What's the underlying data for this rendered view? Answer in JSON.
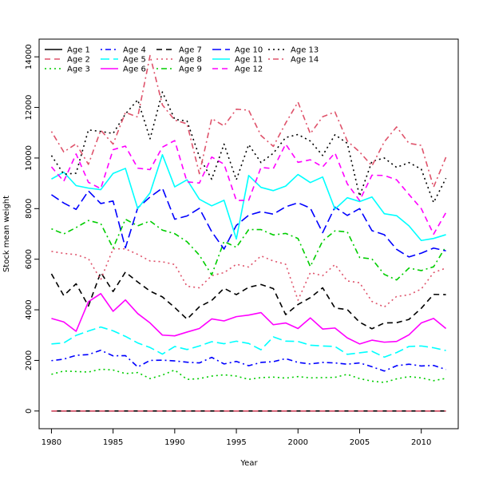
{
  "chart_data": {
    "type": "line",
    "title": "",
    "xlabel": "Year",
    "ylabel": "Stock mean weight",
    "xlim": [
      1979,
      2013
    ],
    "ylim": [
      -700,
      14700
    ],
    "x_ticks": [
      1980,
      1985,
      1990,
      1995,
      2000,
      2005,
      2010
    ],
    "y_ticks": [
      0,
      2000,
      4000,
      6000,
      8000,
      10000,
      12000,
      14000
    ],
    "grid": false,
    "legend_position": "top-left",
    "x": [
      1980,
      1981,
      1982,
      1983,
      1984,
      1985,
      1986,
      1987,
      1988,
      1989,
      1990,
      1991,
      1992,
      1993,
      1994,
      1995,
      1996,
      1997,
      1998,
      1999,
      2000,
      2001,
      2002,
      2003,
      2004,
      2005,
      2006,
      2007,
      2008,
      2009,
      2010,
      2011,
      2012
    ],
    "series": [
      {
        "name": "Age 1",
        "color": "#000000",
        "dash": "solid",
        "values": [
          0,
          0,
          0,
          0,
          0,
          0,
          0,
          0,
          0,
          0,
          0,
          0,
          0,
          0,
          0,
          0,
          0,
          0,
          0,
          0,
          0,
          0,
          0,
          0,
          0,
          0,
          0,
          0,
          0,
          0,
          0,
          0,
          0
        ]
      },
      {
        "name": "Age 2",
        "color": "#DF536B",
        "dash": "dash",
        "values": [
          0,
          0,
          0,
          0,
          0,
          0,
          0,
          0,
          0,
          0,
          0,
          0,
          0,
          0,
          0,
          0,
          0,
          0,
          0,
          0,
          0,
          0,
          0,
          0,
          0,
          0,
          0,
          0,
          0,
          0,
          0,
          0,
          0
        ]
      },
      {
        "name": "Age 3",
        "color": "#00CD00",
        "dash": "dot",
        "values": [
          1450,
          1580,
          1560,
          1540,
          1650,
          1620,
          1480,
          1520,
          1280,
          1420,
          1620,
          1250,
          1280,
          1380,
          1430,
          1380,
          1250,
          1320,
          1340,
          1300,
          1360,
          1310,
          1320,
          1330,
          1450,
          1280,
          1180,
          1130,
          1270,
          1360,
          1310,
          1200,
          1290
        ]
      },
      {
        "name": "Age 4",
        "color": "#0000FF",
        "dash": "dotdash",
        "values": [
          1990,
          2050,
          2200,
          2230,
          2400,
          2180,
          2190,
          1740,
          2000,
          2010,
          1980,
          1930,
          1900,
          2120,
          1860,
          1960,
          1790,
          1920,
          1950,
          2070,
          1920,
          1860,
          1920,
          1900,
          1850,
          1900,
          1750,
          1580,
          1790,
          1850,
          1780,
          1800,
          1640
        ]
      },
      {
        "name": "Age 5",
        "color": "#00FFFF",
        "dash": "longdash",
        "values": [
          2650,
          2690,
          2990,
          3160,
          3320,
          3170,
          2950,
          2690,
          2510,
          2250,
          2550,
          2430,
          2570,
          2740,
          2660,
          2760,
          2670,
          2420,
          2930,
          2760,
          2750,
          2600,
          2570,
          2550,
          2240,
          2300,
          2360,
          2130,
          2310,
          2550,
          2570,
          2500,
          2390
        ]
      },
      {
        "name": "Age 6",
        "color": "#FF00FF",
        "dash": "solid",
        "values": [
          3660,
          3520,
          3150,
          4320,
          4640,
          3940,
          4390,
          3850,
          3480,
          3000,
          2970,
          3120,
          3260,
          3640,
          3560,
          3730,
          3790,
          3890,
          3410,
          3480,
          3260,
          3680,
          3240,
          3280,
          2890,
          2650,
          2800,
          2720,
          2750,
          3010,
          3480,
          3660,
          3260
        ]
      },
      {
        "name": "Age 7",
        "color": "#000000",
        "dash": "dash",
        "values": [
          5420,
          4560,
          5030,
          4150,
          5480,
          4720,
          5490,
          5100,
          4740,
          4510,
          4090,
          3630,
          4120,
          4370,
          4850,
          4600,
          4890,
          5000,
          4840,
          3810,
          4210,
          4480,
          4870,
          4070,
          4010,
          3510,
          3250,
          3480,
          3490,
          3620,
          4060,
          4610,
          4600
        ]
      },
      {
        "name": "Age 8",
        "color": "#DF536B",
        "dash": "dot",
        "values": [
          6310,
          6230,
          6180,
          6020,
          5190,
          6410,
          6410,
          6190,
          5930,
          5900,
          5790,
          4930,
          4870,
          5350,
          5470,
          5800,
          5690,
          6130,
          5930,
          5800,
          4380,
          5470,
          5350,
          5790,
          5140,
          5070,
          4330,
          4110,
          4530,
          4590,
          4820,
          5470,
          5650
        ]
      },
      {
        "name": "Age 9",
        "color": "#00CD00",
        "dash": "dotdash",
        "values": [
          7200,
          7000,
          7250,
          7530,
          7410,
          6440,
          7580,
          7320,
          7510,
          7150,
          7010,
          6690,
          6160,
          5380,
          6700,
          6470,
          7170,
          7170,
          6960,
          7020,
          6820,
          5710,
          6720,
          7120,
          7080,
          6070,
          6010,
          5400,
          5180,
          5650,
          5550,
          5700,
          6500
        ]
      },
      {
        "name": "Age 10",
        "color": "#0000FF",
        "dash": "longdash",
        "values": [
          8550,
          8220,
          7970,
          8700,
          8200,
          8300,
          6450,
          8030,
          8460,
          8810,
          7580,
          7710,
          8010,
          7090,
          6400,
          7340,
          7740,
          7880,
          7780,
          8070,
          8230,
          8020,
          7050,
          8060,
          7730,
          8000,
          7130,
          6970,
          6390,
          6090,
          6240,
          6440,
          6330
        ]
      },
      {
        "name": "Age 11",
        "color": "#00FFFF",
        "dash": "solid",
        "values": [
          9170,
          9440,
          8910,
          8810,
          8750,
          9390,
          9590,
          8000,
          8620,
          10130,
          8860,
          9140,
          8370,
          8110,
          8330,
          6800,
          9310,
          8840,
          8710,
          8890,
          9350,
          9030,
          9250,
          7980,
          8430,
          8280,
          8460,
          7800,
          7720,
          7320,
          6740,
          6820,
          6970
        ]
      },
      {
        "name": "Age 12",
        "color": "#FF00FF",
        "dash": "dash",
        "values": [
          9650,
          9080,
          10160,
          9040,
          8790,
          10330,
          10470,
          9600,
          9540,
          10430,
          10690,
          9060,
          9010,
          10040,
          9760,
          8320,
          8330,
          9630,
          9580,
          10550,
          9830,
          9930,
          9650,
          10200,
          8980,
          8320,
          9320,
          9310,
          9140,
          8560,
          8000,
          6990,
          7840
        ]
      },
      {
        "name": "Age 13",
        "color": "#000000",
        "dash": "dot",
        "values": [
          10100,
          9360,
          9400,
          11110,
          11050,
          10970,
          11740,
          12300,
          10760,
          12610,
          11530,
          11460,
          10050,
          9160,
          10550,
          9140,
          10530,
          9820,
          10190,
          10810,
          10930,
          10670,
          10100,
          10920,
          10580,
          8490,
          9870,
          10000,
          9630,
          9820,
          9560,
          8240,
          9200
        ]
      },
      {
        "name": "Age 14",
        "color": "#DF536B",
        "dash": "dotdash",
        "values": [
          11050,
          10240,
          10560,
          9750,
          11100,
          10550,
          11800,
          11620,
          14050,
          12100,
          11500,
          11350,
          9380,
          11560,
          11270,
          11930,
          11890,
          10890,
          10460,
          11380,
          12210,
          10960,
          11630,
          11820,
          10670,
          10240,
          9690,
          10640,
          11230,
          10580,
          10500,
          8850,
          10030
        ]
      }
    ]
  }
}
